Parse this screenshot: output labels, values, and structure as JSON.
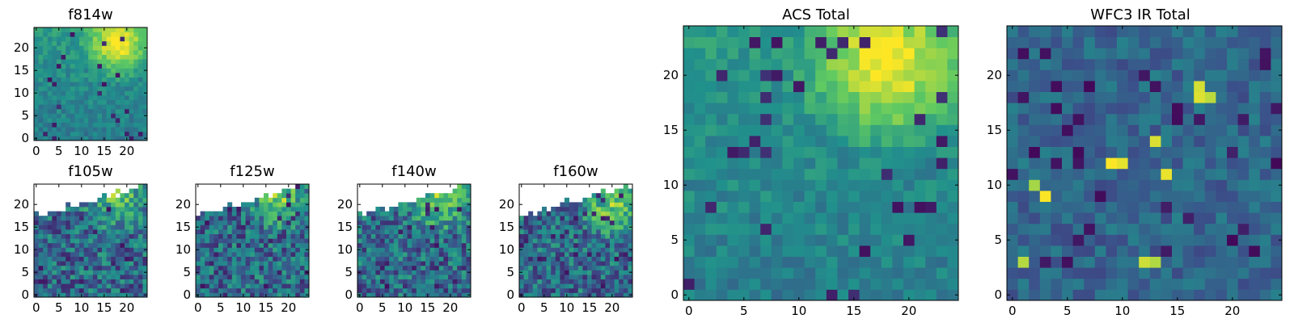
{
  "colormap": [
    "#440154",
    "#3b528b",
    "#21918c",
    "#5ec962",
    "#fde725"
  ],
  "chart_data": [
    {
      "type": "heatmap",
      "title": "f814w",
      "grid_size": 25,
      "valid_region": "full",
      "xlim": [
        -0.5,
        24.5
      ],
      "ylim": [
        -0.5,
        24.5
      ],
      "xticks": [
        0,
        5,
        10,
        15,
        20
      ],
      "yticks": [
        0,
        5,
        10,
        15,
        20
      ],
      "values_note": "per-pixel intensities not legible; rendered as a procedural field",
      "high_region": [
        18,
        21
      ]
    },
    {
      "type": "heatmap",
      "title": "f105w",
      "grid_size": 25,
      "valid_region": "sloped_top",
      "xlim": [
        -0.5,
        24.5
      ],
      "ylim": [
        -0.5,
        24.5
      ],
      "xticks": [
        0,
        5,
        10,
        15,
        20
      ],
      "yticks": [
        0,
        5,
        10,
        15,
        20
      ],
      "high_region": [
        18,
        22
      ]
    },
    {
      "type": "heatmap",
      "title": "f125w",
      "grid_size": 25,
      "valid_region": "sloped_top",
      "xlim": [
        -0.5,
        24.5
      ],
      "ylim": [
        -0.5,
        24.5
      ],
      "xticks": [
        0,
        5,
        10,
        15,
        20
      ],
      "yticks": [
        0,
        5,
        10,
        15,
        20
      ],
      "high_region": [
        18,
        22
      ]
    },
    {
      "type": "heatmap",
      "title": "f140w",
      "grid_size": 25,
      "valid_region": "sloped_top",
      "xlim": [
        -0.5,
        24.5
      ],
      "ylim": [
        -0.5,
        24.5
      ],
      "xticks": [
        0,
        5,
        10,
        15,
        20
      ],
      "yticks": [
        0,
        5,
        10,
        15,
        20
      ],
      "high_region": [
        18,
        21
      ]
    },
    {
      "type": "heatmap",
      "title": "f160w",
      "grid_size": 25,
      "valid_region": "sloped_top",
      "xlim": [
        -0.5,
        24.5
      ],
      "ylim": [
        -0.5,
        24.5
      ],
      "xticks": [
        0,
        5,
        10,
        15,
        20
      ],
      "yticks": [
        0,
        5,
        10,
        15,
        20
      ],
      "high_region": [
        20,
        20
      ]
    },
    {
      "type": "heatmap",
      "title": "ACS Total",
      "grid_size": 25,
      "valid_region": "full",
      "xlim": [
        -0.5,
        24.5
      ],
      "ylim": [
        -0.5,
        24.5
      ],
      "xticks": [
        0,
        5,
        10,
        15,
        20
      ],
      "yticks": [
        0,
        5,
        10,
        15,
        20
      ],
      "high_region": [
        18,
        21
      ]
    },
    {
      "type": "heatmap",
      "title": "WFC3 IR Total",
      "grid_size": 25,
      "valid_region": "full",
      "xlim": [
        -0.5,
        24.5
      ],
      "ylim": [
        -0.5,
        24.5
      ],
      "xticks": [
        0,
        5,
        10,
        15,
        20
      ],
      "yticks": [
        0,
        5,
        10,
        15,
        20
      ],
      "bright_pixels": [
        [
          1,
          3
        ],
        [
          12,
          3
        ],
        [
          13,
          3
        ],
        [
          2,
          10
        ],
        [
          3,
          9
        ],
        [
          9,
          12
        ],
        [
          10,
          12
        ],
        [
          13,
          14
        ],
        [
          14,
          11
        ],
        [
          17,
          18
        ],
        [
          18,
          18
        ],
        [
          17,
          19
        ]
      ]
    }
  ]
}
